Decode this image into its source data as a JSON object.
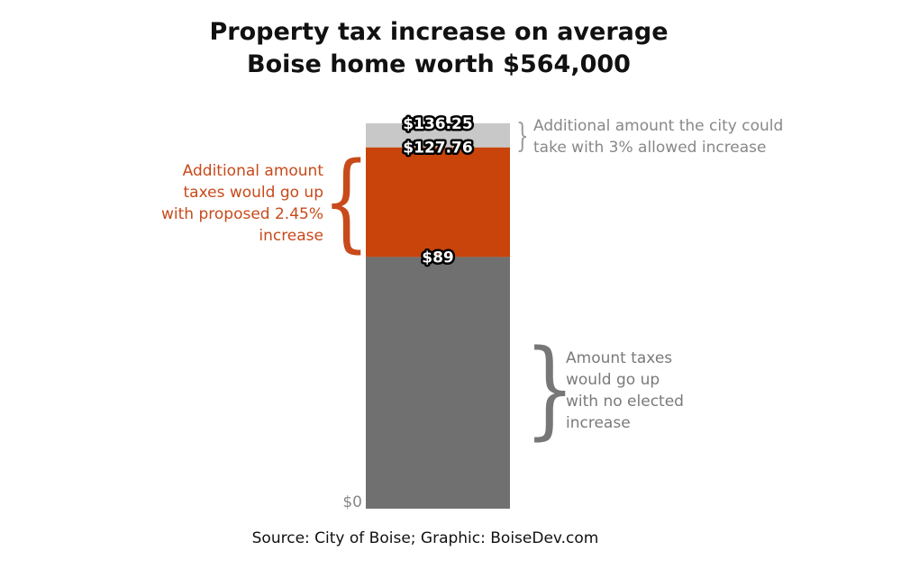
{
  "title_lines": [
    "Property tax increase on average",
    "Boise home worth $564,000"
  ],
  "source": "Source: City of Boise; Graphic: BoiseDev.com",
  "chart_data": {
    "type": "bar",
    "stacked": true,
    "categories": [
      ""
    ],
    "ylim": [
      0,
      136.25
    ],
    "segments": [
      {
        "from": 0,
        "to": 89,
        "color": "#707070",
        "label": "$89"
      },
      {
        "from": 89,
        "to": 127.76,
        "color": "#c8440a",
        "label": "$127.76"
      },
      {
        "from": 127.76,
        "to": 136.25,
        "color": "#c8c8c8",
        "label": "$136.25"
      }
    ],
    "zero_label": "$0"
  },
  "annotations": {
    "top": {
      "lines": [
        "Additional amount the city could",
        "take with 3% allowed increase"
      ],
      "brace": "}"
    },
    "middle": {
      "lines": [
        "Additional amount",
        "taxes would go up",
        "with proposed 2.45%",
        "increase"
      ],
      "brace": "{"
    },
    "bottom": {
      "lines": [
        "Amount taxes",
        "would go up",
        "with no elected",
        "increase"
      ],
      "brace": "}"
    }
  }
}
